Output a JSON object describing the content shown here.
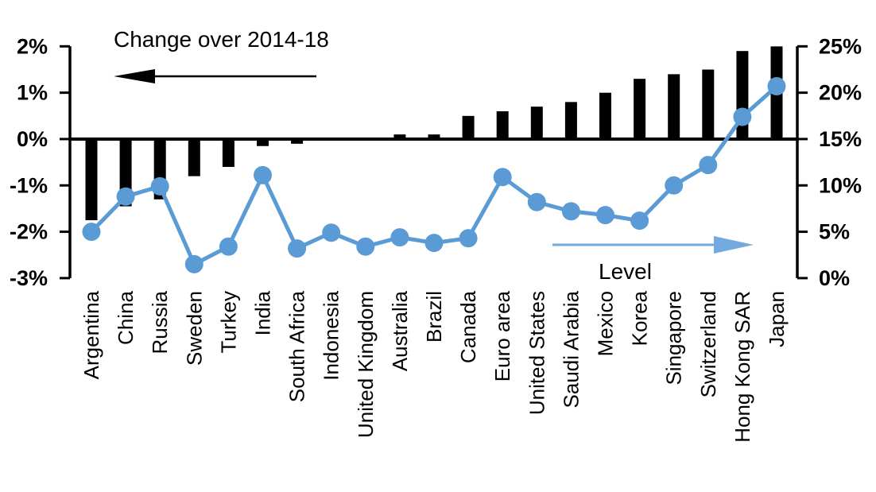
{
  "chart_data": {
    "type": "combo",
    "categories": [
      "Argentina",
      "China",
      "Russia",
      "Sweden",
      "Turkey",
      "India",
      "South Africa",
      "Indonesia",
      "United Kingdom",
      "Australia",
      "Brazil",
      "Canada",
      "Euro area",
      "United States",
      "Saudi Arabia",
      "Mexico",
      "Korea",
      "Singapore",
      "Switzerland",
      "Hong Kong SAR",
      "Japan"
    ],
    "series": [
      {
        "name": "Change over 2014-18",
        "type": "bar",
        "axis": "left",
        "unit": "pct-points",
        "values": [
          -1.75,
          -1.45,
          -1.3,
          -0.8,
          -0.6,
          -0.15,
          -0.1,
          0,
          0,
          0.1,
          0.1,
          0.5,
          0.6,
          0.7,
          0.8,
          1.0,
          1.3,
          1.4,
          1.5,
          1.9,
          2.0
        ]
      },
      {
        "name": "Level",
        "type": "line",
        "axis": "right",
        "unit": "pct",
        "values": [
          5.0,
          8.8,
          9.9,
          1.5,
          3.4,
          11.1,
          3.2,
          4.9,
          3.4,
          4.4,
          3.8,
          4.3,
          10.9,
          8.2,
          7.2,
          6.8,
          6.2,
          10.0,
          12.2,
          17.4,
          20.7
        ]
      }
    ],
    "left_axis": {
      "min": -3,
      "max": 2,
      "step": 1,
      "tick_labels": [
        "2%",
        "1%",
        "0%",
        "-1%",
        "-2%",
        "-3%"
      ]
    },
    "right_axis": {
      "min": 0,
      "max": 25,
      "step": 5,
      "tick_labels": [
        "25%",
        "20%",
        "15%",
        "10%",
        "5%",
        "0%"
      ]
    },
    "annotations": [
      {
        "text": "Change over 2014-18",
        "arrow": "left",
        "color": "#000000"
      },
      {
        "text": "Level",
        "arrow": "right",
        "color": "#74A9DF"
      }
    ],
    "colors": {
      "bar": "#000000",
      "line": "#5B9BD5",
      "axis": "#000000",
      "arrow_blue": "#74A9DF"
    },
    "grid": false,
    "legend_position": "none",
    "title": "",
    "xlabel": "",
    "ylabel_left": "Change over 2014-18",
    "ylabel_right": "Level"
  }
}
